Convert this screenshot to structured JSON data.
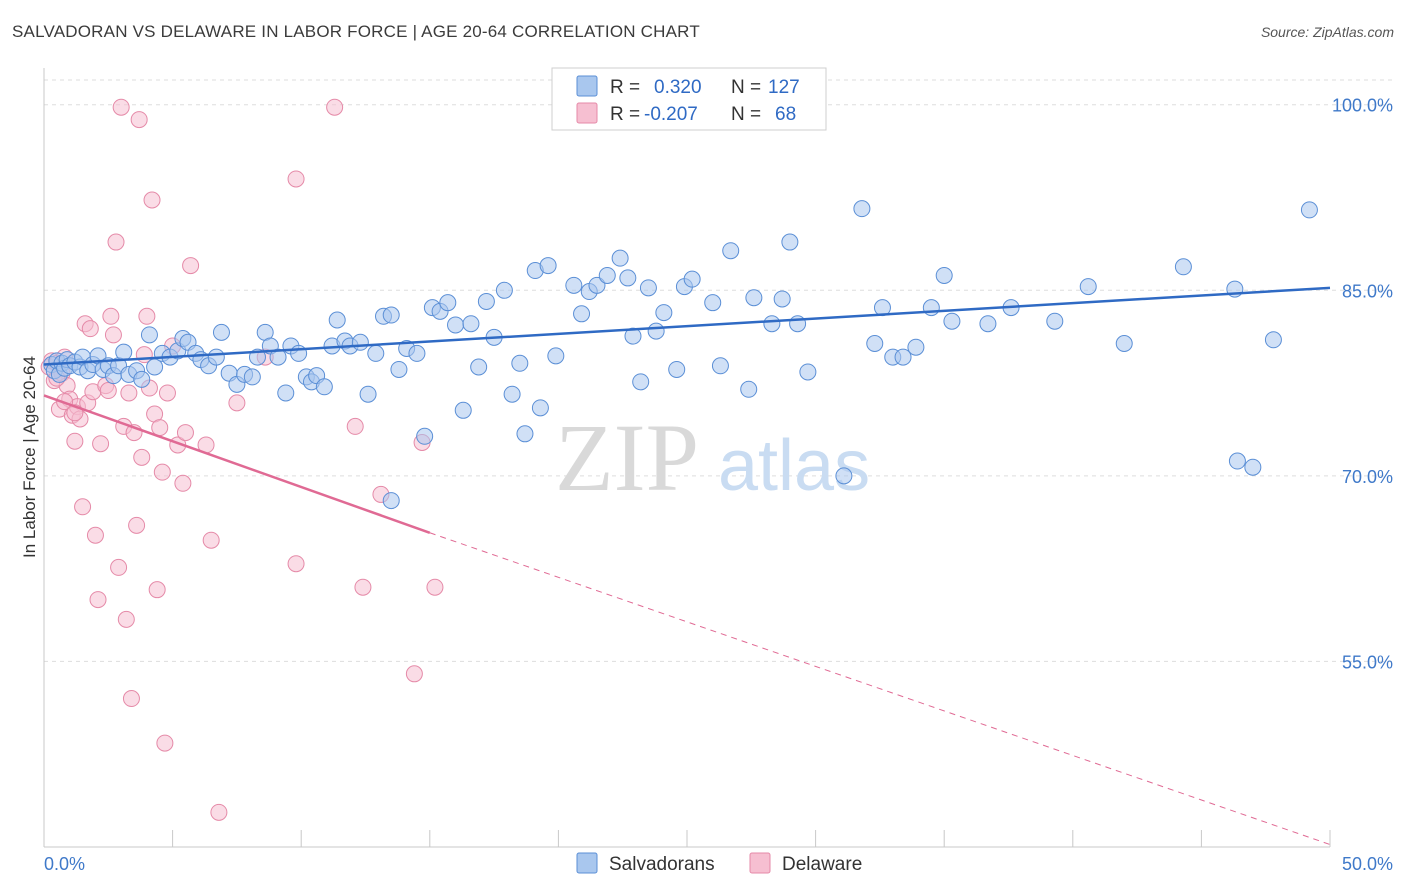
{
  "header": {
    "title": "SALVADORAN VS DELAWARE IN LABOR FORCE | AGE 20-64 CORRELATION CHART",
    "source": "Source: ZipAtlas.com"
  },
  "watermark": {
    "zip": "ZIP",
    "atlas": "atlas"
  },
  "colors": {
    "blue_fill": "#a9c7ee",
    "blue_stroke": "#5b8fd6",
    "blue_line": "#2f6ac4",
    "pink_fill": "#f6bfd1",
    "pink_stroke": "#e58aa8",
    "pink_line": "#e06a94",
    "grid": "#dddddd",
    "tick_text": "#3f79c9"
  },
  "legend": {
    "r_label": "R =",
    "n_label": "N =",
    "rows": [
      {
        "r": "0.320",
        "n": "127",
        "series": "salvadorans"
      },
      {
        "r": "-0.207",
        "n": "68",
        "series": "delaware"
      }
    ]
  },
  "bottom_legend": [
    "Salvadorans",
    "Delaware"
  ],
  "chart_data": {
    "type": "scatter",
    "title": "SALVADORAN VS DELAWARE IN LABOR FORCE | AGE 20-64 CORRELATION CHART",
    "xlabel": "",
    "ylabel": "In Labor Force | Age 20-64",
    "xlim": [
      0,
      50
    ],
    "ylim": [
      40,
      102
    ],
    "x_tick_labels": [
      "0.0%",
      "50.0%"
    ],
    "y_ticks": [
      55,
      70,
      85,
      100
    ],
    "y_tick_labels": [
      "55.0%",
      "70.0%",
      "85.0%",
      "100.0%"
    ],
    "grid": true,
    "legend_position": "top-center",
    "series": [
      {
        "name": "Salvadorans",
        "r": 0.32,
        "n": 127,
        "trend": {
          "x": [
            0,
            50
          ],
          "y": [
            79.0,
            85.2
          ],
          "style": "solid"
        },
        "points": [
          [
            0.3,
            79.0
          ],
          [
            0.4,
            78.5
          ],
          [
            0.5,
            79.3
          ],
          [
            0.6,
            78.2
          ],
          [
            0.7,
            79.1
          ],
          [
            0.8,
            78.7
          ],
          [
            0.9,
            79.4
          ],
          [
            1.0,
            78.9
          ],
          [
            1.2,
            79.2
          ],
          [
            1.4,
            78.8
          ],
          [
            1.5,
            79.6
          ],
          [
            1.7,
            78.5
          ],
          [
            1.9,
            79.0
          ],
          [
            2.1,
            79.7
          ],
          [
            2.3,
            78.6
          ],
          [
            2.5,
            78.9
          ],
          [
            2.7,
            78.1
          ],
          [
            2.9,
            78.9
          ],
          [
            3.1,
            80.0
          ],
          [
            3.3,
            78.2
          ],
          [
            3.6,
            78.5
          ],
          [
            3.8,
            77.8
          ],
          [
            4.1,
            81.4
          ],
          [
            4.3,
            78.8
          ],
          [
            4.6,
            79.9
          ],
          [
            4.9,
            79.6
          ],
          [
            5.2,
            80.1
          ],
          [
            5.4,
            81.1
          ],
          [
            5.6,
            80.8
          ],
          [
            5.9,
            79.9
          ],
          [
            6.1,
            79.4
          ],
          [
            6.4,
            78.9
          ],
          [
            6.7,
            79.6
          ],
          [
            6.9,
            81.6
          ],
          [
            7.2,
            78.3
          ],
          [
            7.5,
            77.4
          ],
          [
            7.8,
            78.2
          ],
          [
            8.1,
            78.0
          ],
          [
            8.3,
            79.6
          ],
          [
            8.6,
            81.6
          ],
          [
            8.8,
            80.5
          ],
          [
            9.1,
            79.6
          ],
          [
            9.4,
            76.7
          ],
          [
            9.6,
            80.5
          ],
          [
            9.9,
            79.9
          ],
          [
            10.2,
            78.0
          ],
          [
            10.4,
            77.6
          ],
          [
            10.6,
            78.1
          ],
          [
            10.9,
            77.2
          ],
          [
            11.2,
            80.5
          ],
          [
            11.4,
            82.6
          ],
          [
            11.7,
            80.9
          ],
          [
            11.9,
            80.5
          ],
          [
            12.3,
            80.8
          ],
          [
            12.6,
            76.6
          ],
          [
            12.9,
            79.9
          ],
          [
            13.2,
            82.9
          ],
          [
            13.5,
            83.0
          ],
          [
            13.8,
            78.6
          ],
          [
            14.1,
            80.3
          ],
          [
            14.5,
            79.9
          ],
          [
            14.8,
            73.2
          ],
          [
            15.1,
            83.6
          ],
          [
            15.4,
            83.3
          ],
          [
            15.7,
            84.0
          ],
          [
            16.0,
            82.2
          ],
          [
            16.3,
            75.3
          ],
          [
            16.6,
            82.3
          ],
          [
            16.9,
            78.8
          ],
          [
            17.2,
            84.1
          ],
          [
            17.5,
            81.2
          ],
          [
            17.9,
            85.0
          ],
          [
            18.2,
            76.6
          ],
          [
            18.5,
            79.1
          ],
          [
            18.7,
            73.4
          ],
          [
            19.1,
            86.6
          ],
          [
            19.3,
            75.5
          ],
          [
            19.6,
            87.0
          ],
          [
            19.9,
            79.7
          ],
          [
            20.6,
            85.4
          ],
          [
            20.9,
            83.1
          ],
          [
            21.2,
            84.9
          ],
          [
            21.5,
            85.4
          ],
          [
            21.9,
            86.2
          ],
          [
            22.4,
            87.6
          ],
          [
            22.7,
            86.0
          ],
          [
            22.9,
            81.3
          ],
          [
            23.2,
            77.6
          ],
          [
            23.5,
            85.2
          ],
          [
            23.8,
            81.7
          ],
          [
            24.1,
            83.2
          ],
          [
            24.6,
            78.6
          ],
          [
            24.9,
            85.3
          ],
          [
            25.2,
            85.9
          ],
          [
            26.0,
            84.0
          ],
          [
            26.3,
            78.9
          ],
          [
            26.7,
            88.2
          ],
          [
            27.4,
            77.0
          ],
          [
            27.6,
            84.4
          ],
          [
            28.3,
            82.3
          ],
          [
            28.7,
            84.3
          ],
          [
            29.0,
            88.9
          ],
          [
            29.3,
            82.3
          ],
          [
            29.7,
            78.4
          ],
          [
            31.1,
            70.0
          ],
          [
            31.8,
            91.6
          ],
          [
            32.3,
            80.7
          ],
          [
            32.6,
            83.6
          ],
          [
            33.0,
            79.6
          ],
          [
            33.4,
            79.6
          ],
          [
            33.9,
            80.4
          ],
          [
            34.5,
            83.6
          ],
          [
            35.0,
            86.2
          ],
          [
            35.3,
            82.5
          ],
          [
            36.7,
            82.3
          ],
          [
            37.6,
            83.6
          ],
          [
            39.3,
            82.5
          ],
          [
            40.6,
            85.3
          ],
          [
            42.0,
            80.7
          ],
          [
            44.3,
            86.9
          ],
          [
            46.3,
            85.1
          ],
          [
            46.4,
            71.2
          ],
          [
            47.0,
            70.7
          ],
          [
            47.8,
            81.0
          ],
          [
            49.2,
            91.5
          ],
          [
            13.5,
            68.0
          ]
        ]
      },
      {
        "name": "Delaware",
        "r": -0.207,
        "n": 68,
        "trend": {
          "x": [
            0,
            15
          ],
          "y": [
            76.5,
            65.4
          ],
          "style": "solid",
          "dashed_extension_to": [
            50,
            40.2
          ]
        },
        "points": [
          [
            0.2,
            78.8
          ],
          [
            0.3,
            79.3
          ],
          [
            0.4,
            77.7
          ],
          [
            0.5,
            79.1
          ],
          [
            0.6,
            75.4
          ],
          [
            0.7,
            78.3
          ],
          [
            0.8,
            79.6
          ],
          [
            0.9,
            77.3
          ],
          [
            1.0,
            76.2
          ],
          [
            1.1,
            74.9
          ],
          [
            1.2,
            72.8
          ],
          [
            1.3,
            75.6
          ],
          [
            1.4,
            74.6
          ],
          [
            1.5,
            67.5
          ],
          [
            1.6,
            82.3
          ],
          [
            1.7,
            75.9
          ],
          [
            1.8,
            81.9
          ],
          [
            1.9,
            76.8
          ],
          [
            2.0,
            65.2
          ],
          [
            2.1,
            60.0
          ],
          [
            2.2,
            72.6
          ],
          [
            2.4,
            77.3
          ],
          [
            2.5,
            76.9
          ],
          [
            2.6,
            82.9
          ],
          [
            2.7,
            81.4
          ],
          [
            2.8,
            88.9
          ],
          [
            2.9,
            62.6
          ],
          [
            3.0,
            99.8
          ],
          [
            3.1,
            74.0
          ],
          [
            3.2,
            58.4
          ],
          [
            3.3,
            76.7
          ],
          [
            3.4,
            52.0
          ],
          [
            3.5,
            73.5
          ],
          [
            3.6,
            66.0
          ],
          [
            3.7,
            98.8
          ],
          [
            3.8,
            71.5
          ],
          [
            3.9,
            79.8
          ],
          [
            4.0,
            82.9
          ],
          [
            4.1,
            77.1
          ],
          [
            4.2,
            92.3
          ],
          [
            4.3,
            75.0
          ],
          [
            4.4,
            60.8
          ],
          [
            4.5,
            73.9
          ],
          [
            4.6,
            70.3
          ],
          [
            4.7,
            48.4
          ],
          [
            4.8,
            76.7
          ],
          [
            5.0,
            80.5
          ],
          [
            5.2,
            72.5
          ],
          [
            5.4,
            69.4
          ],
          [
            5.5,
            73.5
          ],
          [
            5.7,
            87.0
          ],
          [
            6.3,
            72.5
          ],
          [
            6.5,
            64.8
          ],
          [
            7.5,
            75.9
          ],
          [
            8.6,
            79.6
          ],
          [
            9.8,
            94.0
          ],
          [
            9.8,
            62.9
          ],
          [
            12.1,
            74.0
          ],
          [
            12.4,
            61.0
          ],
          [
            13.1,
            68.5
          ],
          [
            14.4,
            54.0
          ],
          [
            14.7,
            72.7
          ],
          [
            15.2,
            61.0
          ],
          [
            6.8,
            42.8
          ],
          [
            11.3,
            99.8
          ],
          [
            0.5,
            77.9
          ],
          [
            0.8,
            76.0
          ],
          [
            1.2,
            75.1
          ]
        ]
      }
    ]
  }
}
